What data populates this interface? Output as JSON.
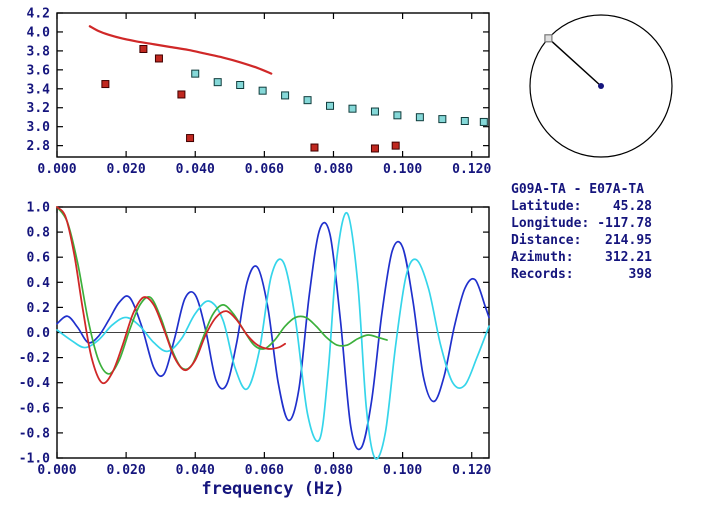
{
  "colors": {
    "background": "#ffffff",
    "axis": "#000000",
    "text": "#15157d"
  },
  "info_panel": {
    "title": "G09A-TA - E07A-TA",
    "rows": [
      {
        "label": "Latitude:",
        "value": "45.28"
      },
      {
        "label": "Longitude:",
        "value": "-117.78"
      },
      {
        "label": "Distance:",
        "value": "214.95"
      },
      {
        "label": "Azimuth:",
        "value": "312.21"
      },
      {
        "label": "Records:",
        "value": "398"
      }
    ]
  },
  "azimuth_dial": {
    "azimuth_deg": 312.21,
    "line_color": "#000000",
    "marker_fill": "#e0e0e0",
    "marker_edge": "#777777"
  },
  "chart_data": [
    {
      "id": "top",
      "type": "scatter",
      "title": "",
      "xlabel": "",
      "ylabel": "",
      "x_range": [
        0,
        0.125
      ],
      "y_range": [
        2.68,
        4.2
      ],
      "grid": false,
      "x_ticks": {
        "values": [
          0,
          0.02,
          0.04,
          0.06,
          0.08,
          0.1,
          0.12
        ],
        "labels": [
          "0.000",
          "0.020",
          "0.040",
          "0.060",
          "0.080",
          "0.100",
          "0.120"
        ]
      },
      "y_ticks": {
        "values": [
          2.8,
          3.0,
          3.2,
          3.4,
          3.6,
          3.8,
          4.0,
          4.2
        ],
        "labels": [
          "2.8",
          "3.0",
          "3.2",
          "3.4",
          "3.6",
          "3.8",
          "4.0",
          "4.2"
        ]
      },
      "zero_line": false,
      "series": [
        {
          "name": "reference-dispersion-curve",
          "type": "line",
          "color": "#d02828",
          "width": 2.2,
          "points": [
            [
              0.0095,
              4.06
            ],
            [
              0.012,
              4.01
            ],
            [
              0.015,
              3.97
            ],
            [
              0.019,
              3.93
            ],
            [
              0.023,
              3.9
            ],
            [
              0.028,
              3.87
            ],
            [
              0.033,
              3.84
            ],
            [
              0.038,
              3.81
            ],
            [
              0.043,
              3.77
            ],
            [
              0.048,
              3.73
            ],
            [
              0.053,
              3.68
            ],
            [
              0.058,
              3.62
            ],
            [
              0.062,
              3.56
            ]
          ]
        },
        {
          "name": "rejected-velocity-points",
          "type": "scatter",
          "marker": "square",
          "color": "#c02820",
          "edge": "#400000",
          "size": 7,
          "points": [
            [
              0.014,
              3.45
            ],
            [
              0.025,
              3.82
            ],
            [
              0.0295,
              3.72
            ],
            [
              0.036,
              3.34
            ],
            [
              0.0385,
              2.88
            ],
            [
              0.0745,
              2.78
            ],
            [
              0.092,
              2.77
            ],
            [
              0.098,
              2.8
            ]
          ]
        },
        {
          "name": "accepted-velocity-points",
          "type": "scatter",
          "marker": "square",
          "color": "#85d8d8",
          "edge": "#103c3c",
          "size": 7,
          "points": [
            [
              0.04,
              3.56
            ],
            [
              0.0465,
              3.47
            ],
            [
              0.053,
              3.44
            ],
            [
              0.0595,
              3.38
            ],
            [
              0.066,
              3.33
            ],
            [
              0.0725,
              3.28
            ],
            [
              0.079,
              3.22
            ],
            [
              0.0855,
              3.19
            ],
            [
              0.092,
              3.16
            ],
            [
              0.0985,
              3.12
            ],
            [
              0.105,
              3.1
            ],
            [
              0.1115,
              3.08
            ],
            [
              0.118,
              3.06
            ],
            [
              0.1235,
              3.05
            ]
          ]
        }
      ]
    },
    {
      "id": "bottom",
      "type": "line",
      "title": "",
      "xlabel": "frequency (Hz)",
      "ylabel": "",
      "x_range": [
        0,
        0.125
      ],
      "y_range": [
        -1.0,
        1.0
      ],
      "grid": false,
      "x_ticks": {
        "values": [
          0,
          0.02,
          0.04,
          0.06,
          0.08,
          0.1,
          0.12
        ],
        "labels": [
          "0.000",
          "0.020",
          "0.040",
          "0.060",
          "0.080",
          "0.100",
          "0.120"
        ]
      },
      "y_ticks": {
        "values": [
          1.0,
          0.8,
          0.6,
          0.4,
          0.2,
          0.0,
          -0.2,
          -0.4,
          -0.6,
          -0.8,
          -1.0
        ],
        "labels": [
          "1.0",
          "0.8",
          "0.6",
          "0.4",
          "0.2",
          "0.0",
          "-0.2",
          "-0.4",
          "-0.6",
          "-0.8",
          "-1.0"
        ]
      },
      "zero_line": true,
      "series": [
        {
          "name": "blue-spectrum-trace",
          "type": "line",
          "color": "#2030cc",
          "width": 1.7,
          "points": [
            [
              0,
              0.07
            ],
            [
              0.003,
              0.13
            ],
            [
              0.006,
              0.04
            ],
            [
              0.009,
              -0.08
            ],
            [
              0.012,
              -0.03
            ],
            [
              0.015,
              0.1
            ],
            [
              0.018,
              0.24
            ],
            [
              0.021,
              0.28
            ],
            [
              0.0245,
              0.05
            ],
            [
              0.028,
              -0.28
            ],
            [
              0.031,
              -0.33
            ],
            [
              0.034,
              -0.05
            ],
            [
              0.037,
              0.27
            ],
            [
              0.04,
              0.3
            ],
            [
              0.043,
              0.02
            ],
            [
              0.046,
              -0.38
            ],
            [
              0.049,
              -0.42
            ],
            [
              0.052,
              -0.08
            ],
            [
              0.055,
              0.4
            ],
            [
              0.058,
              0.52
            ],
            [
              0.061,
              0.2
            ],
            [
              0.064,
              -0.4
            ],
            [
              0.067,
              -0.7
            ],
            [
              0.07,
              -0.45
            ],
            [
              0.073,
              0.3
            ],
            [
              0.076,
              0.82
            ],
            [
              0.079,
              0.78
            ],
            [
              0.082,
              0.1
            ],
            [
              0.085,
              -0.75
            ],
            [
              0.088,
              -0.92
            ],
            [
              0.091,
              -0.55
            ],
            [
              0.094,
              0.15
            ],
            [
              0.097,
              0.65
            ],
            [
              0.1,
              0.68
            ],
            [
              0.103,
              0.25
            ],
            [
              0.106,
              -0.35
            ],
            [
              0.109,
              -0.55
            ],
            [
              0.112,
              -0.35
            ],
            [
              0.115,
              0.05
            ],
            [
              0.118,
              0.35
            ],
            [
              0.121,
              0.42
            ],
            [
              0.124,
              0.2
            ],
            [
              0.125,
              0.12
            ]
          ]
        },
        {
          "name": "cyan-spectrum-trace",
          "type": "line",
          "color": "#35d5ea",
          "width": 1.7,
          "points": [
            [
              0,
              0.02
            ],
            [
              0.004,
              -0.06
            ],
            [
              0.008,
              -0.12
            ],
            [
              0.012,
              -0.06
            ],
            [
              0.016,
              0.06
            ],
            [
              0.02,
              0.12
            ],
            [
              0.024,
              0.05
            ],
            [
              0.028,
              -0.08
            ],
            [
              0.032,
              -0.15
            ],
            [
              0.036,
              -0.05
            ],
            [
              0.04,
              0.15
            ],
            [
              0.044,
              0.25
            ],
            [
              0.048,
              0.1
            ],
            [
              0.0515,
              -0.28
            ],
            [
              0.055,
              -0.45
            ],
            [
              0.0585,
              -0.15
            ],
            [
              0.062,
              0.45
            ],
            [
              0.0655,
              0.56
            ],
            [
              0.069,
              0.1
            ],
            [
              0.0725,
              -0.65
            ],
            [
              0.076,
              -0.85
            ],
            [
              0.0785,
              -0.3
            ],
            [
              0.081,
              0.6
            ],
            [
              0.084,
              0.95
            ],
            [
              0.087,
              0.4
            ],
            [
              0.0895,
              -0.6
            ],
            [
              0.092,
              -1.0
            ],
            [
              0.095,
              -0.8
            ],
            [
              0.098,
              -0.1
            ],
            [
              0.101,
              0.45
            ],
            [
              0.104,
              0.58
            ],
            [
              0.1075,
              0.35
            ],
            [
              0.111,
              -0.1
            ],
            [
              0.1145,
              -0.4
            ],
            [
              0.118,
              -0.42
            ],
            [
              0.1215,
              -0.2
            ],
            [
              0.125,
              0.05
            ]
          ]
        },
        {
          "name": "green-spectrum-trace",
          "type": "line",
          "color": "#3cb03c",
          "width": 1.7,
          "points": [
            [
              0,
              1.0
            ],
            [
              0.003,
              0.88
            ],
            [
              0.006,
              0.55
            ],
            [
              0.009,
              0.1
            ],
            [
              0.012,
              -0.22
            ],
            [
              0.015,
              -0.33
            ],
            [
              0.018,
              -0.22
            ],
            [
              0.021,
              0.02
            ],
            [
              0.024,
              0.22
            ],
            [
              0.027,
              0.28
            ],
            [
              0.03,
              0.12
            ],
            [
              0.033,
              -0.12
            ],
            [
              0.036,
              -0.28
            ],
            [
              0.039,
              -0.26
            ],
            [
              0.042,
              -0.06
            ],
            [
              0.045,
              0.14
            ],
            [
              0.048,
              0.22
            ],
            [
              0.051,
              0.15
            ],
            [
              0.054,
              0.02
            ],
            [
              0.057,
              -0.1
            ],
            [
              0.06,
              -0.13
            ],
            [
              0.063,
              -0.06
            ],
            [
              0.066,
              0.05
            ],
            [
              0.069,
              0.12
            ],
            [
              0.072,
              0.12
            ],
            [
              0.075,
              0.05
            ],
            [
              0.078,
              -0.04
            ],
            [
              0.081,
              -0.1
            ],
            [
              0.084,
              -0.1
            ],
            [
              0.087,
              -0.05
            ],
            [
              0.09,
              -0.02
            ],
            [
              0.093,
              -0.04
            ],
            [
              0.0955,
              -0.06
            ]
          ]
        },
        {
          "name": "red-spectrum-trace",
          "type": "line",
          "color": "#d02828",
          "width": 1.8,
          "points": [
            [
              0,
              1.0
            ],
            [
              0.0025,
              0.92
            ],
            [
              0.005,
              0.62
            ],
            [
              0.0075,
              0.18
            ],
            [
              0.01,
              -0.2
            ],
            [
              0.013,
              -0.4
            ],
            [
              0.016,
              -0.32
            ],
            [
              0.019,
              -0.1
            ],
            [
              0.022,
              0.15
            ],
            [
              0.025,
              0.28
            ],
            [
              0.028,
              0.22
            ],
            [
              0.031,
              0.02
            ],
            [
              0.034,
              -0.2
            ],
            [
              0.037,
              -0.3
            ],
            [
              0.04,
              -0.22
            ],
            [
              0.043,
              -0.02
            ],
            [
              0.046,
              0.12
            ],
            [
              0.049,
              0.17
            ],
            [
              0.052,
              0.1
            ],
            [
              0.055,
              -0.02
            ],
            [
              0.058,
              -0.1
            ],
            [
              0.061,
              -0.13
            ],
            [
              0.064,
              -0.12
            ],
            [
              0.066,
              -0.09
            ]
          ]
        }
      ]
    }
  ]
}
